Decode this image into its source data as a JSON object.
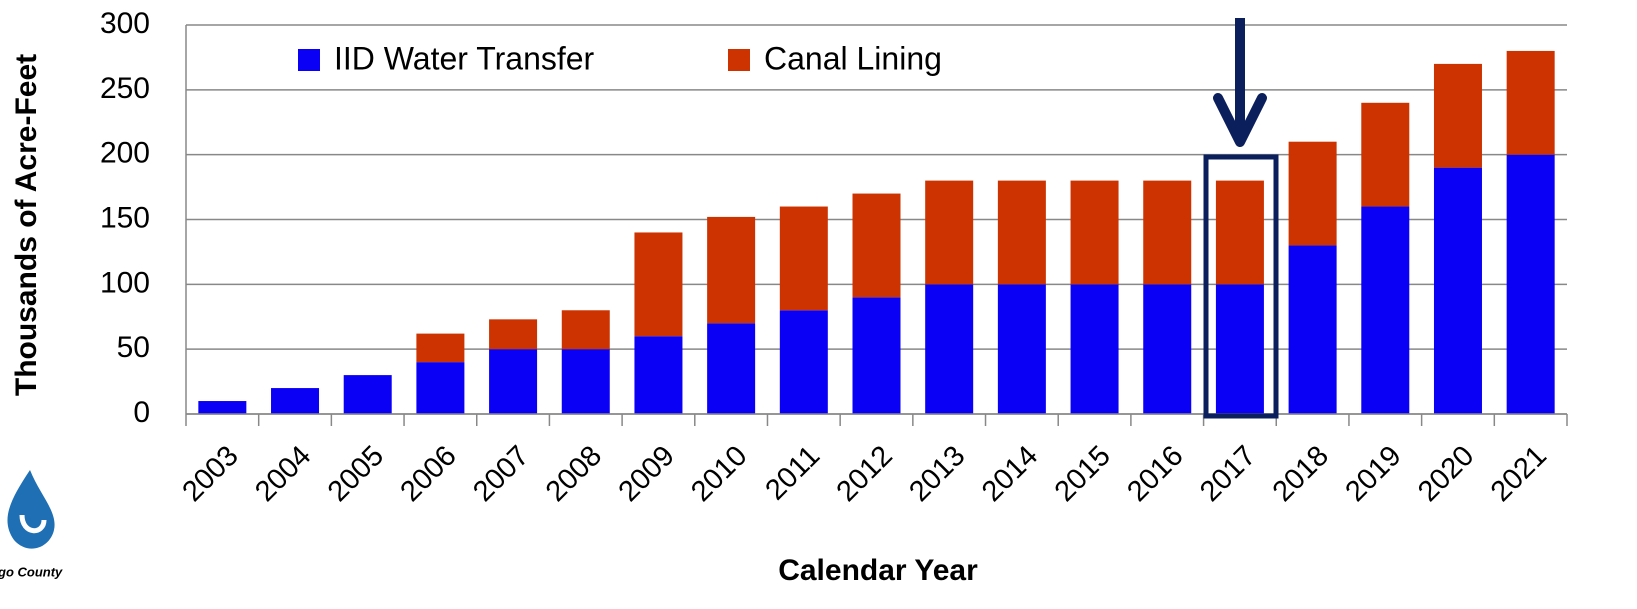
{
  "chart_data": {
    "type": "stacked_bar",
    "y_label": "Thousands of Acre-Feet",
    "x_label": "Calendar Year",
    "categories": [
      "2003",
      "2004",
      "2005",
      "2006",
      "2007",
      "2008",
      "2009",
      "2010",
      "2011",
      "2012",
      "2013",
      "2014",
      "2015",
      "2016",
      "2017",
      "2018",
      "2019",
      "2020",
      "2021"
    ],
    "series": [
      {
        "name": "IID Water Transfer",
        "color": "#0a00f5",
        "values": [
          10,
          20,
          30,
          40,
          50,
          50,
          60,
          70,
          80,
          90,
          100,
          100,
          100,
          100,
          100,
          130,
          160,
          190,
          200
        ]
      },
      {
        "name": "Canal Lining",
        "color": "#cc3300",
        "values": [
          0,
          0,
          0,
          22,
          23,
          30,
          80,
          82,
          80,
          80,
          80,
          80,
          80,
          80,
          80,
          80,
          80,
          80,
          80
        ]
      }
    ],
    "ylim": [
      0,
      300
    ],
    "yticks": [
      0,
      50,
      100,
      150,
      200,
      250,
      300
    ],
    "grid": true
  },
  "logo": {
    "text": "go County"
  }
}
